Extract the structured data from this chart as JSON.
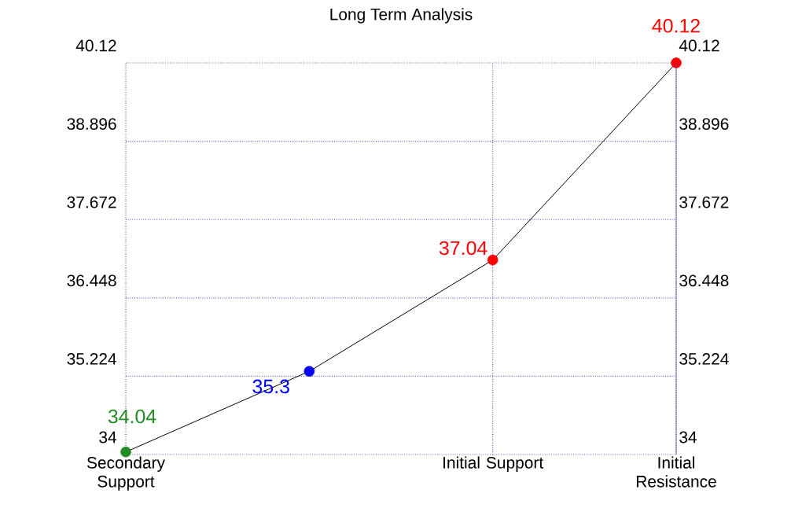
{
  "chart_data": {
    "type": "line",
    "title": "Long Term Analysis",
    "categories": [
      "Secondary Support",
      null,
      "Initial Support",
      "Initial Resistance"
    ],
    "values": [
      34.04,
      35.3,
      37.04,
      40.12
    ],
    "color": "#000000",
    "colors": [
      "#228b22",
      "#0000ff",
      "#ff0000",
      "#ff0000"
    ],
    "marker": "circle",
    "data_labels": true,
    "grid": true,
    "ylim": [
      34,
      40.12
    ],
    "yticks": [
      34,
      35.224,
      36.448,
      37.672,
      38.896,
      40.12
    ],
    "y2lim": [
      34,
      40.12
    ],
    "y2ticks": [
      34,
      35.224,
      36.448,
      37.672,
      38.896,
      40.12
    ]
  }
}
